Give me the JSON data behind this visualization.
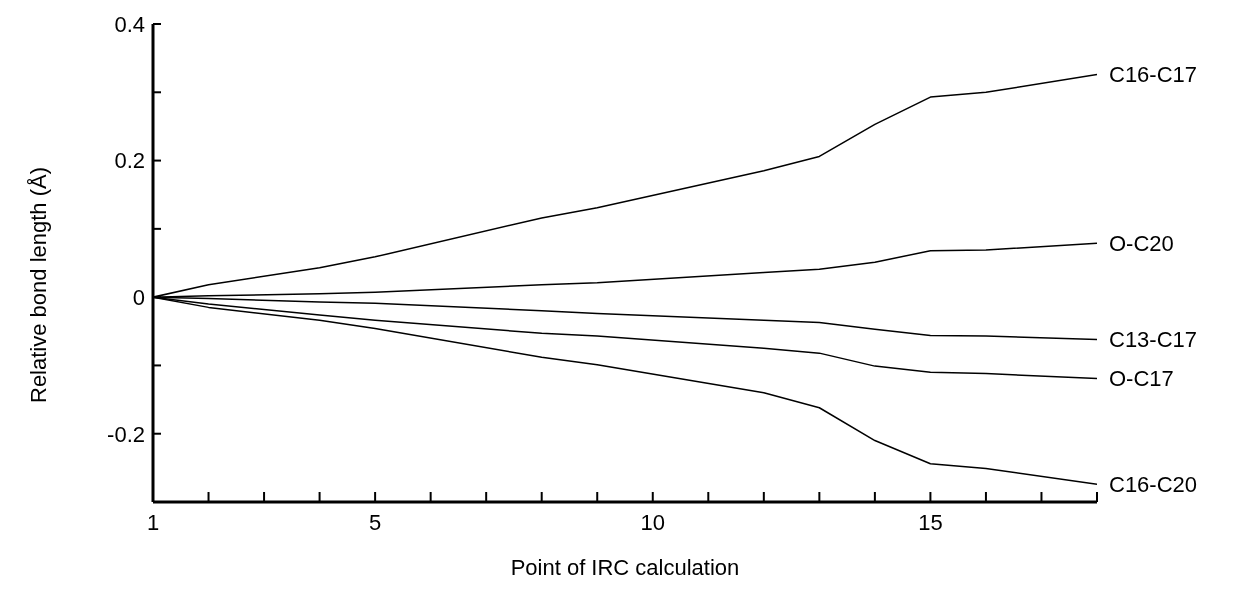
{
  "chart_data": {
    "type": "line",
    "xlabel": "Point of IRC calculation",
    "ylabel": "Relative bond length (Å)",
    "x": [
      1,
      2,
      4,
      5,
      8,
      9,
      12,
      13,
      14,
      15,
      16,
      18
    ],
    "series": [
      {
        "name": "C16-C17",
        "color": "#000000",
        "values": [
          0,
          0.018,
          0.043,
          0.059,
          0.116,
          0.131,
          0.185,
          0.206,
          0.253,
          0.293,
          0.3,
          0.326
        ]
      },
      {
        "name": "O-C20",
        "color": "#000000",
        "values": [
          0,
          0.002,
          0.005,
          0.007,
          0.018,
          0.021,
          0.036,
          0.041,
          0.051,
          0.068,
          0.069,
          0.079
        ]
      },
      {
        "name": "C13-C17",
        "color": "#000000",
        "values": [
          0,
          -0.002,
          -0.007,
          -0.009,
          -0.02,
          -0.024,
          -0.034,
          -0.037,
          -0.047,
          -0.056,
          -0.057,
          -0.062
        ]
      },
      {
        "name": "O-C17",
        "color": "#000000",
        "values": [
          0,
          -0.01,
          -0.026,
          -0.034,
          -0.053,
          -0.057,
          -0.075,
          -0.082,
          -0.101,
          -0.11,
          -0.112,
          -0.119
        ]
      },
      {
        "name": "C16-C20",
        "color": "#000000",
        "values": [
          0,
          -0.015,
          -0.034,
          -0.046,
          -0.088,
          -0.099,
          -0.14,
          -0.162,
          -0.21,
          -0.244,
          -0.251,
          -0.274
        ]
      }
    ],
    "xlim": [
      1,
      18
    ],
    "xticks": [
      1,
      {
        "value": 2,
        "label": null
      },
      {
        "value": 3,
        "label": null
      },
      {
        "value": 4,
        "label": null
      },
      5,
      {
        "value": 6,
        "label": null
      },
      {
        "value": 7,
        "label": null
      },
      {
        "value": 8,
        "label": null
      },
      {
        "value": 9,
        "label": null
      },
      10,
      {
        "value": 11,
        "label": null
      },
      {
        "value": 12,
        "label": null
      },
      {
        "value": 13,
        "label": null
      },
      {
        "value": 14,
        "label": null
      },
      15,
      {
        "value": 16,
        "label": null
      },
      {
        "value": 17,
        "label": null
      },
      {
        "value": 18,
        "label": null
      }
    ],
    "ylim": [
      -0.3,
      0.4
    ],
    "yticks": [
      {
        "value": -0.3,
        "label": null
      },
      -0.2,
      {
        "value": -0.1,
        "label": null
      },
      0,
      {
        "value": 0.1,
        "label": null
      },
      0.2,
      {
        "value": 0.3,
        "label": null
      },
      0.4
    ],
    "grid": false,
    "legend": false,
    "marker": "none",
    "line_style": "solid"
  }
}
